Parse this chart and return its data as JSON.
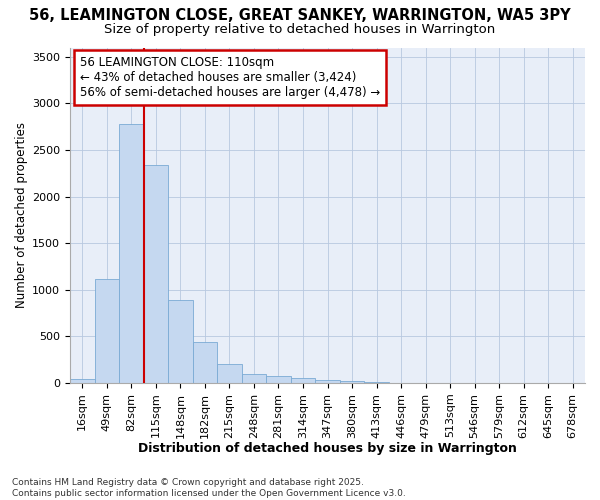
{
  "title1": "56, LEAMINGTON CLOSE, GREAT SANKEY, WARRINGTON, WA5 3PY",
  "title2": "Size of property relative to detached houses in Warrington",
  "xlabel": "Distribution of detached houses by size in Warrington",
  "ylabel": "Number of detached properties",
  "categories": [
    "16sqm",
    "49sqm",
    "82sqm",
    "115sqm",
    "148sqm",
    "182sqm",
    "215sqm",
    "248sqm",
    "281sqm",
    "314sqm",
    "347sqm",
    "380sqm",
    "413sqm",
    "446sqm",
    "479sqm",
    "513sqm",
    "546sqm",
    "579sqm",
    "612sqm",
    "645sqm",
    "678sqm"
  ],
  "values": [
    40,
    1120,
    2780,
    2340,
    890,
    440,
    200,
    100,
    70,
    50,
    30,
    20,
    10,
    5,
    3,
    2,
    1,
    1,
    1,
    0,
    0
  ],
  "bar_color": "#c5d8f0",
  "bar_edge_color": "#7aaad4",
  "vline_color": "#cc0000",
  "annotation_text": "56 LEAMINGTON CLOSE: 110sqm\n← 43% of detached houses are smaller (3,424)\n56% of semi-detached houses are larger (4,478) →",
  "annotation_box_color": "#cc0000",
  "annotation_bg": "#ffffff",
  "ylim": [
    0,
    3600
  ],
  "yticks": [
    0,
    500,
    1000,
    1500,
    2000,
    2500,
    3000,
    3500
  ],
  "bg_color": "#e8eef8",
  "footer": "Contains HM Land Registry data © Crown copyright and database right 2025.\nContains public sector information licensed under the Open Government Licence v3.0.",
  "title1_fontsize": 10.5,
  "title2_fontsize": 9.5,
  "annotation_fontsize": 8.5,
  "xlabel_fontsize": 9,
  "ylabel_fontsize": 8.5,
  "tick_fontsize": 8,
  "footer_fontsize": 6.5
}
